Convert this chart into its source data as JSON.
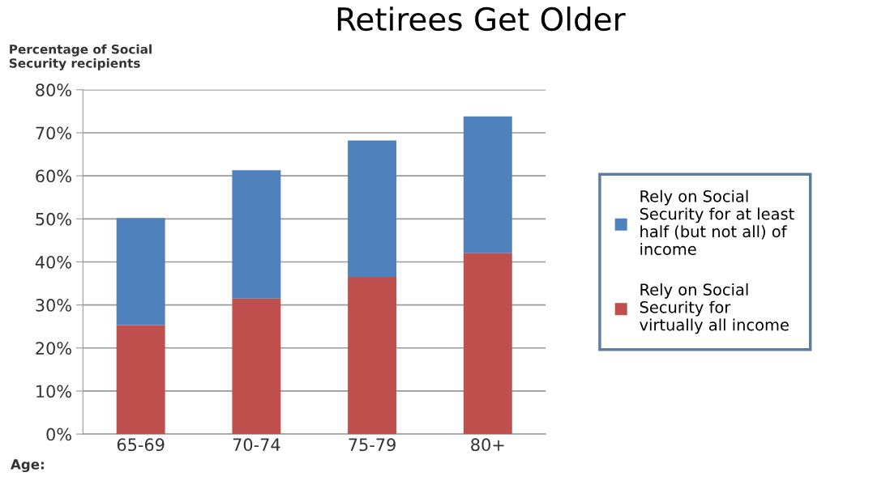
{
  "chart_data": {
    "type": "bar",
    "title": "Retirees Get Older",
    "ylabel": "Percentage of Social\nSecurity recipients",
    "xlabel": "Age:",
    "categories": [
      "65-69",
      "70-74",
      "75-79",
      "80+"
    ],
    "stacked": true,
    "series": [
      {
        "name": "Rely on Social\nSecurity for\nvirtually all income",
        "color": "#c0504d",
        "values": [
          25.3,
          31.5,
          36.5,
          42
        ]
      },
      {
        "name": "Rely on Social\nSecurity for at least\nhalf (but not all) of\nincome",
        "color": "#4f81bd",
        "values": [
          24.9,
          29.8,
          31.7,
          31.8
        ]
      }
    ],
    "ylim": [
      0,
      80
    ],
    "yticks": [
      {
        "value": 0,
        "label": "0%"
      },
      {
        "value": 10,
        "label": "10%"
      },
      {
        "value": 20,
        "label": "20%"
      },
      {
        "value": 30,
        "label": "30%"
      },
      {
        "value": 40,
        "label": "40%"
      },
      {
        "value": 50,
        "label": "50%"
      },
      {
        "value": 60,
        "label": "60%"
      },
      {
        "value": 70,
        "label": "70%"
      },
      {
        "value": 80,
        "label": "80%"
      }
    ],
    "grid": "y",
    "legend": "right"
  }
}
